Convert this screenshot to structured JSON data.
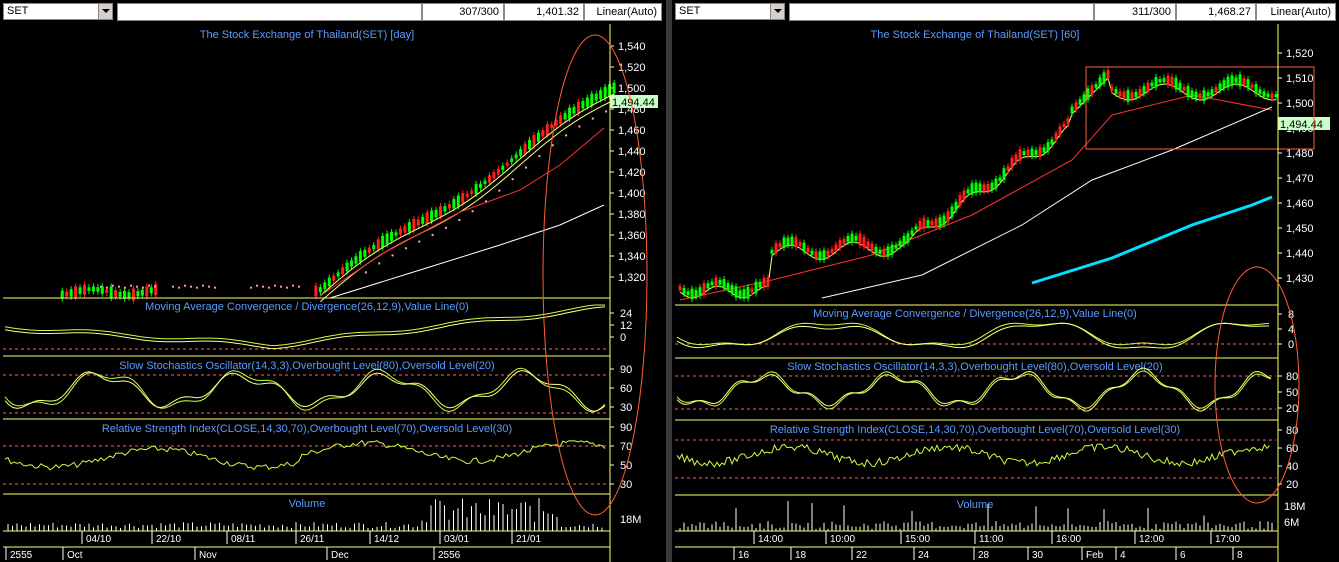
{
  "left": {
    "symbol": "SET",
    "count": "307/300",
    "price": "1,401.32",
    "scale": "Linear(Auto)",
    "title": "The Stock Exchange of Thailand(SET) [day]",
    "last": "1,494.44",
    "price_ticks": [
      "1,540",
      "1,520",
      "1,500",
      "1,480",
      "1,460",
      "1,440",
      "1,420",
      "1,400",
      "1,380",
      "1,360",
      "1,340",
      "1,320"
    ],
    "macd_title": "Moving Average Convergence / Divergence(26,12,9),Value Line(0)",
    "macd_ticks": [
      "24",
      "12",
      "0"
    ],
    "stoch_title": "Slow Stochastics Oscillator(14,3,3),Overbought Level(80),Oversold Level(20)",
    "stoch_ticks": [
      "90",
      "60",
      "30"
    ],
    "rsi_title": "Relative Strength Index(CLOSE,14,30,70),Overbought Level(70),Oversold Level(30)",
    "rsi_ticks": [
      "90",
      "70",
      "50",
      "30"
    ],
    "volume_title": "Volume",
    "volume_tick": "18M",
    "date_ticks": [
      "04/10",
      "22/10",
      "08/11",
      "26/11",
      "14/12",
      "03/01",
      "21/01"
    ],
    "period_ticks": [
      "2555",
      "Oct",
      "Nov",
      "Dec",
      "2556"
    ]
  },
  "right": {
    "symbol": "SET",
    "count": "311/300",
    "price": "1,468.27",
    "scale": "Linear(Auto)",
    "title": "The Stock Exchange of Thailand(SET) [60]",
    "last": "1,494.44",
    "price_ticks": [
      "1,520",
      "1,510",
      "1,500",
      "1,490",
      "1,480",
      "1,470",
      "1,460",
      "1,450",
      "1,440",
      "1,430"
    ],
    "macd_title": "Moving Average Convergence / Divergence(26,12,9),Value Line(0)",
    "macd_ticks": [
      "8",
      "4",
      "0"
    ],
    "stoch_title": "Slow Stochastics Oscillator(14,3,3),Overbought Level(80),Oversold Level(20)",
    "stoch_ticks": [
      "80",
      "50",
      "20"
    ],
    "rsi_title": "Relative Strength Index(CLOSE,14,30,70),Overbought Level(70),Oversold Level(30)",
    "rsi_ticks": [
      "80",
      "60",
      "40",
      "20"
    ],
    "volume_title": "Volume",
    "volume_ticks": [
      "18M",
      "6M"
    ],
    "date_ticks": [
      "14:00",
      "10:00",
      "15:00",
      "11:00",
      "16:00",
      "12:00",
      "17:00"
    ],
    "period_ticks": [
      "16",
      "18",
      "22",
      "24",
      "28",
      "30",
      "Feb",
      "4",
      "6",
      "8"
    ]
  },
  "colors": {
    "background": "#000000",
    "panel_border": "#ffff66",
    "title_text": "#5b9bff",
    "bull_candle": "#00ff00",
    "bear_candle": "#ff2020",
    "ma_short": "#ffff80",
    "ma_mid": "#ff3030",
    "ma_long": "#ffffff",
    "ma_cyan": "#00e0ff",
    "indicator_line": "#c8ff40",
    "level_line": "#ff6060",
    "annotation": "#ff6030"
  }
}
